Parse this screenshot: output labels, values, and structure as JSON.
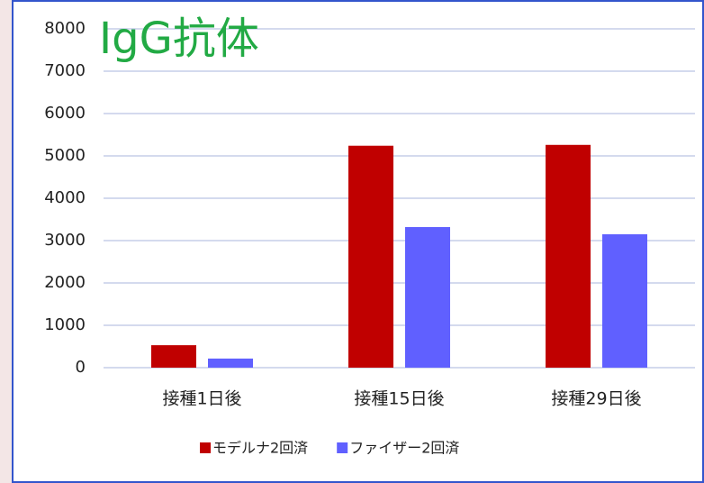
{
  "chart_data": {
    "type": "bar",
    "title": "IgG抗体",
    "categories": [
      "接種1日後",
      "接種15日後",
      "接種29日後"
    ],
    "series": [
      {
        "name": "モデルナ2回済",
        "color": "#c00000",
        "values": [
          530,
          5240,
          5260
        ]
      },
      {
        "name": "ファイザー2回済",
        "color": "#6060ff",
        "values": [
          215,
          3320,
          3150
        ]
      }
    ],
    "ylim": [
      0,
      8000
    ],
    "yticks": [
      0,
      1000,
      2000,
      3000,
      4000,
      5000,
      6000,
      7000,
      8000
    ],
    "grid": true,
    "legend": "bottom"
  }
}
